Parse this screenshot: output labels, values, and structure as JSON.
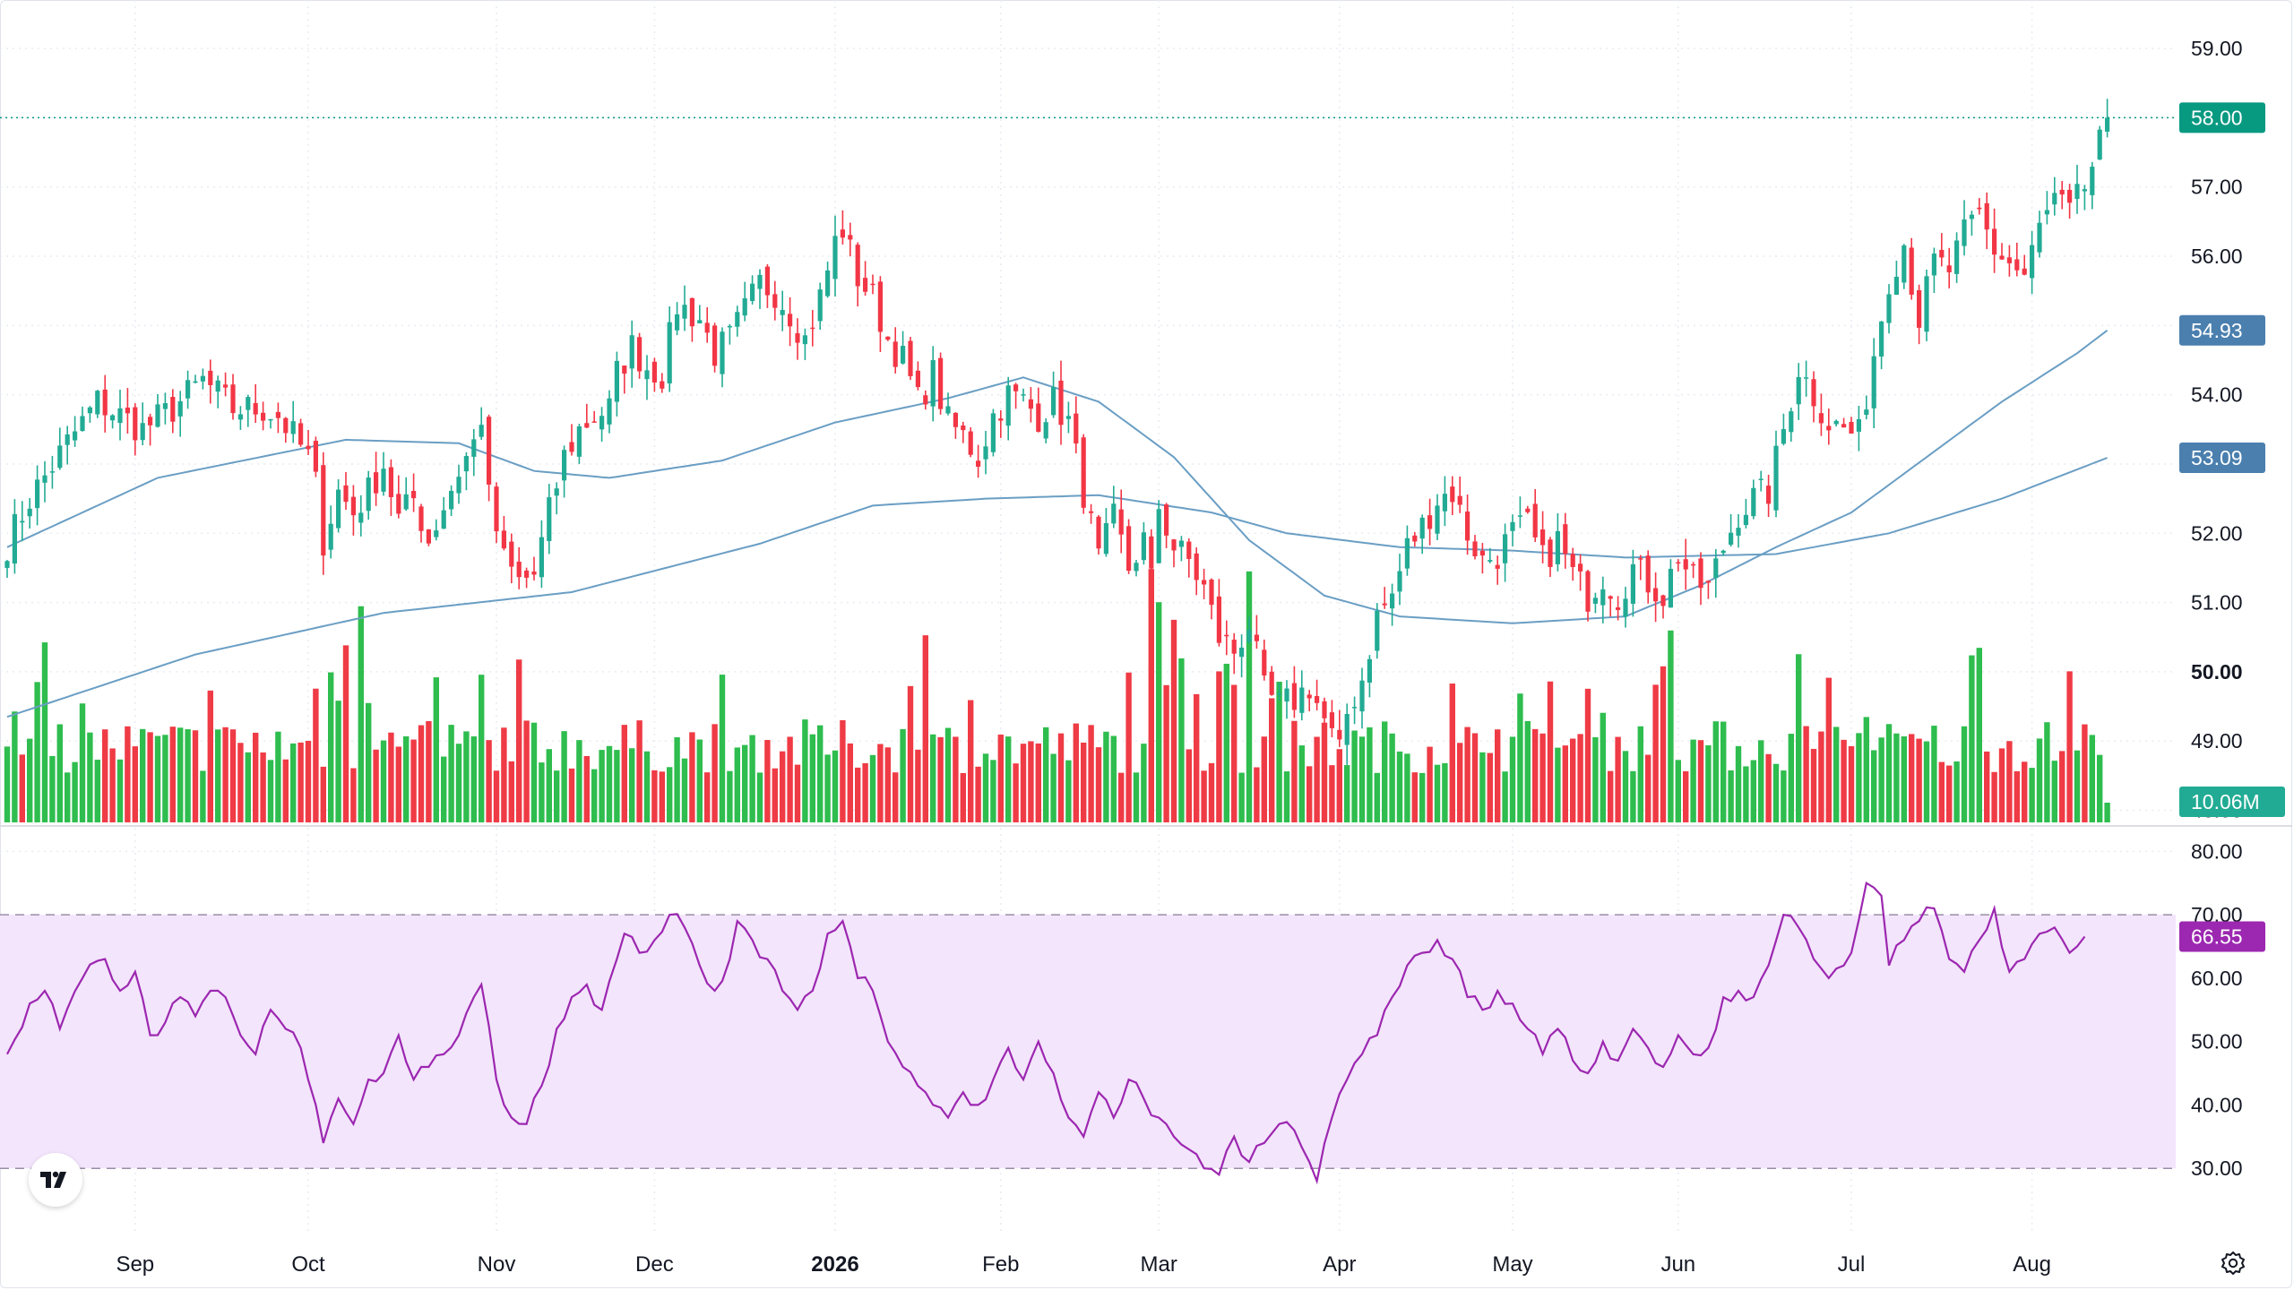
{
  "chart_data": {
    "type": "candlestick",
    "x_axis": {
      "labels": [
        {
          "text": "Sep",
          "bar": 17,
          "bold": false
        },
        {
          "text": "Oct",
          "bar": 40,
          "bold": false
        },
        {
          "text": "Nov",
          "bar": 65,
          "bold": false
        },
        {
          "text": "Dec",
          "bar": 86,
          "bold": false
        },
        {
          "text": "2026",
          "bar": 110,
          "bold": true
        },
        {
          "text": "Feb",
          "bar": 132,
          "bold": false
        },
        {
          "text": "Mar",
          "bar": 153,
          "bold": false
        },
        {
          "text": "Apr",
          "bar": 177,
          "bold": false
        },
        {
          "text": "May",
          "bar": 200,
          "bold": false
        },
        {
          "text": "Jun",
          "bar": 222,
          "bold": false
        },
        {
          "text": "Jul",
          "bar": 245,
          "bold": false
        },
        {
          "text": "Aug",
          "bar": 269,
          "bold": false
        }
      ]
    },
    "price_axis": {
      "ticks": [
        "59.00",
        "58.00",
        "57.00",
        "56.00",
        "54.00",
        "53.00",
        "52.00",
        "51.00",
        "50.00",
        "49.00",
        "48.00"
      ],
      "range": [
        47.8,
        59.7
      ]
    },
    "last_price": {
      "label": "58.00",
      "value": 58.0,
      "color": "#089981"
    },
    "ma_labels": [
      {
        "label": "54.93",
        "value": 54.93,
        "color": "#4a7fae"
      },
      {
        "label": "53.09",
        "value": 53.09,
        "color": "#4a7fae"
      }
    ],
    "volume": {
      "last_label": "10.06M",
      "color": "#22ab94"
    },
    "rsi": {
      "ticks": [
        "80.00",
        "70.00",
        "60.00",
        "50.00",
        "40.00",
        "30.00"
      ],
      "range": [
        20,
        84
      ],
      "band": [
        30,
        70
      ],
      "last_label": "66.55",
      "last_value": 66.55,
      "line_color": "#9c27b0",
      "band_color": "#f3e5fc"
    },
    "colors": {
      "up": "#22ab94",
      "down": "#f23645",
      "up_volume": "#2ebd4e",
      "down_volume": "#ef3b45",
      "ma_line": "#6a9ec4"
    },
    "keypoints": {
      "price": [
        [
          0,
          51.85
        ],
        [
          3,
          52.5
        ],
        [
          8,
          53.3
        ],
        [
          12,
          53.9
        ],
        [
          15,
          53.7
        ],
        [
          18,
          53.5
        ],
        [
          22,
          53.8
        ],
        [
          26,
          54.2
        ],
        [
          30,
          53.8
        ],
        [
          34,
          53.8
        ],
        [
          36,
          53.7
        ],
        [
          38,
          53.4
        ],
        [
          40,
          53.1
        ],
        [
          41,
          52.7
        ],
        [
          42,
          51.9
        ],
        [
          44,
          52.6
        ],
        [
          46,
          52.3
        ],
        [
          48,
          52.6
        ],
        [
          50,
          53.0
        ],
        [
          52,
          52.2
        ],
        [
          54,
          52.5
        ],
        [
          56,
          51.9
        ],
        [
          58,
          52.4
        ],
        [
          60,
          52.9
        ],
        [
          62,
          53.3
        ],
        [
          63,
          53.7
        ],
        [
          64,
          52.5
        ],
        [
          66,
          51.6
        ],
        [
          68,
          51.3
        ],
        [
          70,
          51.4
        ],
        [
          72,
          52.3
        ],
        [
          74,
          53.1
        ],
        [
          76,
          53.5
        ],
        [
          78,
          53.7
        ],
        [
          80,
          53.8
        ],
        [
          81,
          54.3
        ],
        [
          83,
          54.7
        ],
        [
          85,
          54.4
        ],
        [
          87,
          54.3
        ],
        [
          89,
          55.3
        ],
        [
          92,
          55.1
        ],
        [
          94,
          54.6
        ],
        [
          96,
          54.8
        ],
        [
          98,
          55.2
        ],
        [
          100,
          55.6
        ],
        [
          102,
          55.5
        ],
        [
          104,
          55.2
        ],
        [
          106,
          54.8
        ],
        [
          108,
          55.4
        ],
        [
          110,
          56.2
        ],
        [
          111,
          56.4
        ],
        [
          113,
          55.7
        ],
        [
          115,
          55.4
        ],
        [
          117,
          54.8
        ],
        [
          119,
          54.5
        ],
        [
          121,
          53.9
        ],
        [
          123,
          54.3
        ],
        [
          125,
          53.6
        ],
        [
          127,
          53.4
        ],
        [
          129,
          53.1
        ],
        [
          131,
          53.7
        ],
        [
          133,
          54.0
        ],
        [
          135,
          53.9
        ],
        [
          137,
          53.7
        ],
        [
          139,
          53.9
        ],
        [
          141,
          53.6
        ],
        [
          143,
          52.6
        ],
        [
          145,
          51.6
        ],
        [
          147,
          52.2
        ],
        [
          149,
          51.5
        ],
        [
          151,
          51.9
        ],
        [
          152,
          51.3
        ],
        [
          153,
          52.4
        ],
        [
          155,
          51.8
        ],
        [
          157,
          51.6
        ],
        [
          159,
          51.2
        ],
        [
          161,
          50.5
        ],
        [
          163,
          50.3
        ],
        [
          165,
          50.7
        ],
        [
          167,
          49.7
        ],
        [
          169,
          49.5
        ],
        [
          171,
          49.6
        ],
        [
          173,
          49.8
        ],
        [
          175,
          49.3
        ],
        [
          177,
          48.8
        ],
        [
          178,
          49.4
        ],
        [
          180,
          49.9
        ],
        [
          182,
          50.8
        ],
        [
          184,
          51.1
        ],
        [
          186,
          51.8
        ],
        [
          188,
          52.1
        ],
        [
          190,
          52.5
        ],
        [
          192,
          52.6
        ],
        [
          194,
          52.0
        ],
        [
          196,
          51.6
        ],
        [
          198,
          51.7
        ],
        [
          200,
          52.0
        ],
        [
          202,
          52.1
        ],
        [
          204,
          51.6
        ],
        [
          206,
          51.9
        ],
        [
          208,
          51.4
        ],
        [
          210,
          51.1
        ],
        [
          212,
          51.4
        ],
        [
          214,
          51.1
        ],
        [
          216,
          51.5
        ],
        [
          218,
          51.3
        ],
        [
          220,
          51.1
        ],
        [
          222,
          51.7
        ],
        [
          224,
          51.3
        ],
        [
          226,
          51.2
        ],
        [
          228,
          51.8
        ],
        [
          230,
          52.3
        ],
        [
          232,
          52.5
        ],
        [
          234,
          52.6
        ],
        [
          236,
          53.5
        ],
        [
          238,
          54.4
        ],
        [
          240,
          54.0
        ],
        [
          242,
          53.6
        ],
        [
          244,
          53.5
        ],
        [
          246,
          53.4
        ],
        [
          248,
          54.6
        ],
        [
          250,
          55.7
        ],
        [
          252,
          56.2
        ],
        [
          254,
          55.1
        ],
        [
          256,
          55.9
        ],
        [
          258,
          55.8
        ],
        [
          260,
          56.3
        ],
        [
          262,
          56.6
        ],
        [
          264,
          56.1
        ],
        [
          266,
          55.9
        ],
        [
          268,
          55.7
        ],
        [
          270,
          56.4
        ],
        [
          272,
          56.8
        ],
        [
          274,
          56.6
        ],
        [
          276,
          57.0
        ],
        [
          278,
          57.6
        ],
        [
          279,
          58.0
        ]
      ],
      "rsi": [
        [
          0,
          48
        ],
        [
          3,
          56
        ],
        [
          5,
          58
        ],
        [
          7,
          52
        ],
        [
          10,
          60
        ],
        [
          13,
          63
        ],
        [
          15,
          58
        ],
        [
          17,
          61
        ],
        [
          19,
          51
        ],
        [
          21,
          53
        ],
        [
          23,
          57
        ],
        [
          25,
          54
        ],
        [
          27,
          58
        ],
        [
          29,
          57
        ],
        [
          31,
          51
        ],
        [
          33,
          48
        ],
        [
          35,
          55
        ],
        [
          37,
          52
        ],
        [
          39,
          49
        ],
        [
          41,
          40
        ],
        [
          42,
          34
        ],
        [
          44,
          41
        ],
        [
          46,
          37
        ],
        [
          48,
          44
        ],
        [
          50,
          45
        ],
        [
          52,
          51
        ],
        [
          54,
          44
        ],
        [
          56,
          46
        ],
        [
          58,
          48
        ],
        [
          60,
          51
        ],
        [
          62,
          57
        ],
        [
          63,
          59
        ],
        [
          65,
          44
        ],
        [
          67,
          38
        ],
        [
          69,
          37
        ],
        [
          71,
          43
        ],
        [
          73,
          52
        ],
        [
          75,
          57
        ],
        [
          77,
          59
        ],
        [
          79,
          55
        ],
        [
          81,
          63
        ],
        [
          82,
          67
        ],
        [
          84,
          64
        ],
        [
          86,
          66
        ],
        [
          88,
          70
        ],
        [
          90,
          68
        ],
        [
          92,
          62
        ],
        [
          94,
          58
        ],
        [
          96,
          63
        ],
        [
          97,
          69
        ],
        [
          99,
          66
        ],
        [
          101,
          63
        ],
        [
          103,
          58
        ],
        [
          105,
          55
        ],
        [
          107,
          58
        ],
        [
          109,
          67
        ],
        [
          111,
          69
        ],
        [
          113,
          60
        ],
        [
          115,
          58
        ],
        [
          117,
          50
        ],
        [
          119,
          46
        ],
        [
          121,
          43
        ],
        [
          123,
          40
        ],
        [
          125,
          38
        ],
        [
          127,
          42
        ],
        [
          129,
          40
        ],
        [
          131,
          44
        ],
        [
          133,
          49
        ],
        [
          135,
          44
        ],
        [
          137,
          50
        ],
        [
          139,
          45
        ],
        [
          141,
          38
        ],
        [
          143,
          35
        ],
        [
          145,
          42
        ],
        [
          147,
          38
        ],
        [
          149,
          44
        ],
        [
          151,
          41
        ],
        [
          153,
          38
        ],
        [
          155,
          35
        ],
        [
          157,
          33
        ],
        [
          159,
          30
        ],
        [
          161,
          29
        ],
        [
          163,
          35
        ],
        [
          165,
          31
        ],
        [
          167,
          34
        ],
        [
          169,
          37
        ],
        [
          171,
          36
        ],
        [
          173,
          31
        ],
        [
          174,
          28
        ],
        [
          176,
          38
        ],
        [
          178,
          44
        ],
        [
          180,
          48
        ],
        [
          182,
          51
        ],
        [
          184,
          57
        ],
        [
          186,
          62
        ],
        [
          188,
          64
        ],
        [
          190,
          66
        ],
        [
          192,
          63
        ],
        [
          194,
          57
        ],
        [
          196,
          55
        ],
        [
          198,
          58
        ],
        [
          200,
          56
        ],
        [
          202,
          52
        ],
        [
          204,
          48
        ],
        [
          206,
          52
        ],
        [
          208,
          47
        ],
        [
          210,
          45
        ],
        [
          212,
          50
        ],
        [
          214,
          47
        ],
        [
          216,
          52
        ],
        [
          218,
          49
        ],
        [
          220,
          46
        ],
        [
          222,
          51
        ],
        [
          224,
          48
        ],
        [
          226,
          49
        ],
        [
          228,
          57
        ],
        [
          230,
          58
        ],
        [
          232,
          57
        ],
        [
          234,
          62
        ],
        [
          236,
          70
        ],
        [
          238,
          68
        ],
        [
          240,
          63
        ],
        [
          242,
          60
        ],
        [
          244,
          62
        ],
        [
          245,
          64
        ],
        [
          247,
          75
        ],
        [
          249,
          73
        ],
        [
          250,
          62
        ],
        [
          252,
          66
        ],
        [
          254,
          69
        ],
        [
          256,
          71
        ],
        [
          258,
          63
        ],
        [
          260,
          61
        ],
        [
          262,
          66
        ],
        [
          264,
          71
        ],
        [
          266,
          61
        ],
        [
          268,
          63
        ],
        [
          270,
          67
        ],
        [
          272,
          68
        ],
        [
          274,
          64
        ],
        [
          276,
          66.55
        ]
      ],
      "ma50": [
        [
          0,
          51.8
        ],
        [
          20,
          52.8
        ],
        [
          45,
          53.35
        ],
        [
          60,
          53.3
        ],
        [
          70,
          52.9
        ],
        [
          80,
          52.8
        ],
        [
          95,
          53.05
        ],
        [
          110,
          53.6
        ],
        [
          125,
          53.95
        ],
        [
          135,
          54.25
        ],
        [
          145,
          53.9
        ],
        [
          155,
          53.1
        ],
        [
          165,
          51.9
        ],
        [
          175,
          51.1
        ],
        [
          185,
          50.8
        ],
        [
          200,
          50.7
        ],
        [
          215,
          50.8
        ],
        [
          225,
          51.25
        ],
        [
          235,
          51.8
        ],
        [
          245,
          52.3
        ],
        [
          255,
          53.1
        ],
        [
          265,
          53.9
        ],
        [
          275,
          54.6
        ],
        [
          279,
          54.93
        ]
      ],
      "ma200": [
        [
          0,
          49.35
        ],
        [
          25,
          50.25
        ],
        [
          50,
          50.85
        ],
        [
          75,
          51.15
        ],
        [
          100,
          51.85
        ],
        [
          115,
          52.4
        ],
        [
          130,
          52.5
        ],
        [
          145,
          52.55
        ],
        [
          160,
          52.3
        ],
        [
          170,
          52.0
        ],
        [
          185,
          51.8
        ],
        [
          200,
          51.75
        ],
        [
          215,
          51.65
        ],
        [
          235,
          51.7
        ],
        [
          250,
          52.0
        ],
        [
          265,
          52.5
        ],
        [
          279,
          53.09
        ]
      ]
    }
  },
  "icons": {
    "logo": "tradingview-logo-icon",
    "settings": "settings-gear-icon"
  }
}
